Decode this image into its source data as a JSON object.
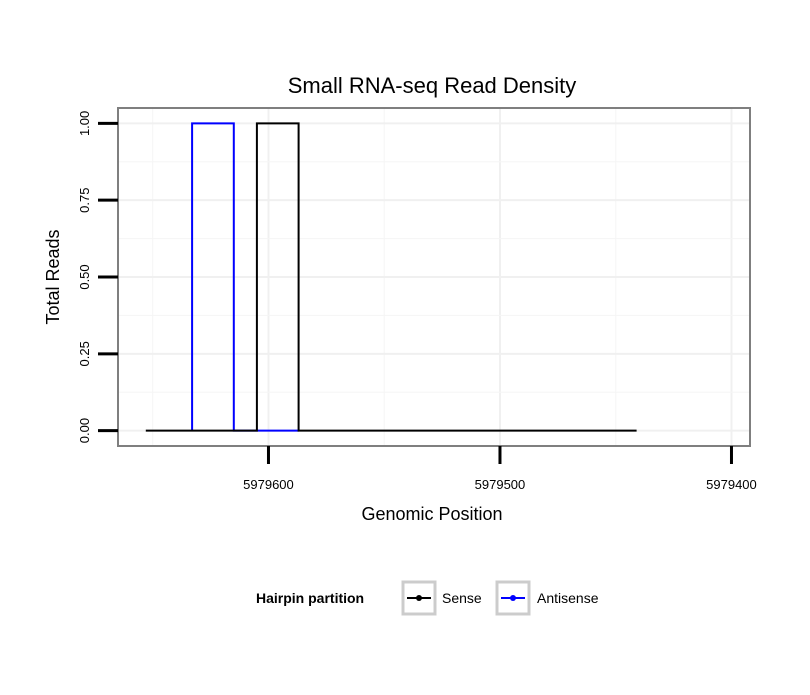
{
  "chart_data": {
    "type": "line",
    "title": "Small RNA-seq Read Density",
    "xlabel": "Genomic Position",
    "ylabel": "Total Reads",
    "x_reversed": true,
    "xlim": [
      5979665,
      5979392
    ],
    "ylim": [
      -0.05,
      1.05
    ],
    "x_ticks": [
      {
        "value": 5979600,
        "label": "5979600"
      },
      {
        "value": 5979500,
        "label": "5979500"
      },
      {
        "value": 5979400,
        "label": "5979400"
      }
    ],
    "y_ticks": [
      {
        "value": 0,
        "label": "0.00"
      },
      {
        "value": 0.25,
        "label": "0.25"
      },
      {
        "value": 0.5,
        "label": "0.50"
      },
      {
        "value": 0.75,
        "label": "0.75"
      },
      {
        "value": 1,
        "label": "1.00"
      }
    ],
    "grid": true,
    "legend": {
      "title": "Hairpin partition",
      "placement": "bottom"
    },
    "series": [
      {
        "name": "Sense",
        "color": "#000000",
        "x": [
          5979653,
          5979614,
          5979614,
          5979605,
          5979605,
          5979587,
          5979587,
          5979441,
          5979464
        ],
        "y": [
          0,
          0,
          0,
          0,
          1,
          1,
          0,
          0,
          0
        ]
      },
      {
        "name": "Antisense",
        "color": "#0000ff",
        "x": [
          5979633,
          5979633,
          5979615,
          5979615,
          5979587
        ],
        "y": [
          0,
          1,
          1,
          0,
          0
        ]
      }
    ]
  }
}
